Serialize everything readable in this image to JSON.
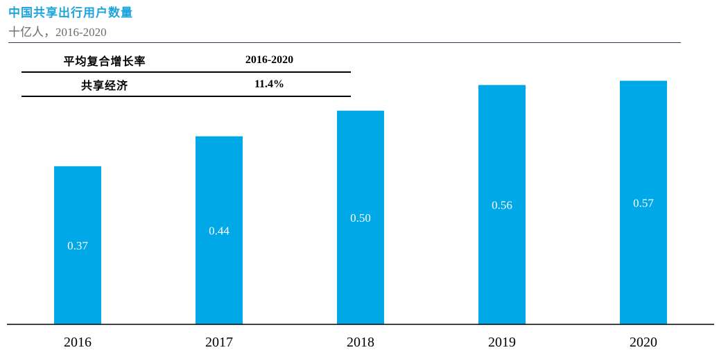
{
  "header": {
    "title": "中国共享出行用户数量",
    "subtitle": "十亿人，2016-2020"
  },
  "cagr_table": {
    "header_label": "平均复合增长率",
    "header_period": "2016-2020",
    "row_label": "共享经济",
    "row_value": "11.4%"
  },
  "chart_data": {
    "type": "bar",
    "categories": [
      "2016",
      "2017",
      "2018",
      "2019",
      "2020"
    ],
    "values": [
      0.37,
      0.44,
      0.5,
      0.56,
      0.57
    ],
    "value_labels": [
      "0.37",
      "0.44",
      "0.50",
      "0.56",
      "0.57"
    ],
    "title": "中国共享出行用户数量",
    "subtitle": "十亿人，2016-2020",
    "xlabel": "",
    "ylabel": "",
    "ylim": [
      0,
      0.6
    ],
    "grid": false,
    "legend": "none",
    "bar_color": "#00a8e8",
    "label_color": "#ffffff"
  }
}
